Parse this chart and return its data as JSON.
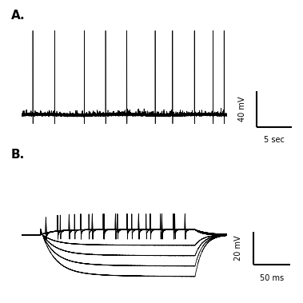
{
  "fig_width": 3.79,
  "fig_height": 3.79,
  "dpi": 100,
  "bg_color": "#ffffff",
  "panel_A_label": "A.",
  "panel_B_label": "B.",
  "label_fontsize": 11,
  "label_fontweight": "bold",
  "scale_bar_A_y_label": "40 mV",
  "scale_bar_A_x_label": "5 sec",
  "scale_bar_B_y_label": "20 mV",
  "scale_bar_B_x_label": "50 ms",
  "trace_color": "#000000",
  "trace_linewidth_A": 0.5,
  "trace_linewidth_B": 0.6
}
